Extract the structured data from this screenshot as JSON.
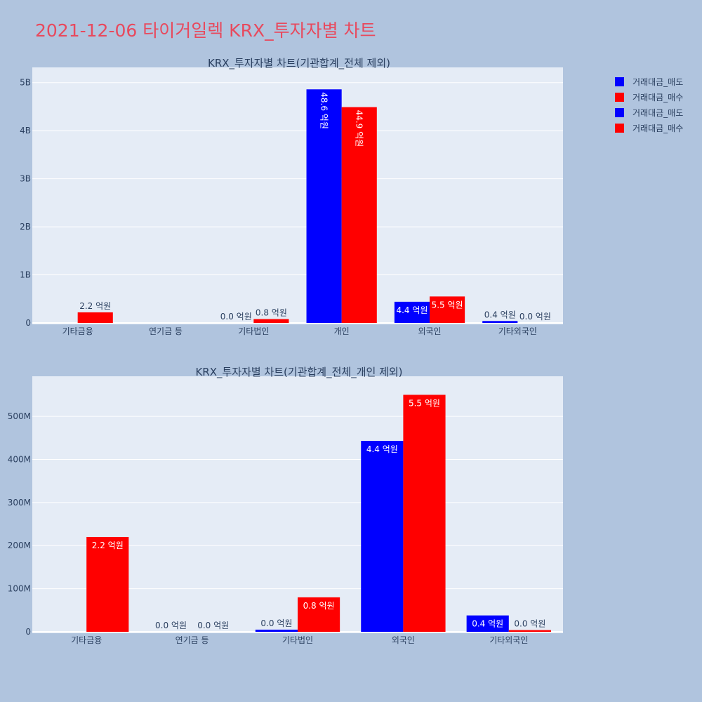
{
  "page": {
    "title": "2021-12-06 타이거일렉 KRX_투자자별 차트"
  },
  "legend": {
    "items": [
      {
        "label": "거래대금_매도",
        "color": "#0000ff"
      },
      {
        "label": "거래대금_매수",
        "color": "#ff0000"
      },
      {
        "label": "거래대금_매도",
        "color": "#0000ff"
      },
      {
        "label": "거래대금_매수",
        "color": "#ff0000"
      }
    ]
  },
  "chart_data": [
    {
      "type": "bar",
      "title": "KRX_투자자별 차트(기관합계_전체 제외)",
      "categories": [
        "기타금융",
        "연기금 등",
        "기타법인",
        "개인",
        "외국인",
        "기타외국인"
      ],
      "series": [
        {
          "name": "거래대금_매도",
          "color": "#0000ff",
          "values": [
            0,
            0,
            0,
            4860000000,
            440000000,
            40000000
          ],
          "labels": [
            "",
            "",
            "0.0 억원",
            "48.6 억원",
            "4.4 억원",
            "0.4 억원"
          ]
        },
        {
          "name": "거래대금_매수",
          "color": "#ff0000",
          "values": [
            220000000,
            0,
            80000000,
            4490000000,
            550000000,
            0
          ],
          "labels": [
            "2.2 억원",
            "",
            "0.8 억원",
            "44.9 억원",
            "5.5 억원",
            "0.0 억원"
          ]
        }
      ],
      "yticks": [
        0,
        1000000000,
        2000000000,
        3000000000,
        4000000000,
        5000000000
      ],
      "ytick_labels": [
        "0",
        "1B",
        "2B",
        "3B",
        "4B",
        "5B"
      ],
      "ylim": [
        0,
        5200000000
      ]
    },
    {
      "type": "bar",
      "title": "KRX_투자자별 차트(기관합계_전체_개인 제외)",
      "categories": [
        "기타금융",
        "연기금 등",
        "기타법인",
        "외국인",
        "기타외국인"
      ],
      "series": [
        {
          "name": "거래대금_매도",
          "color": "#0000ff",
          "values": [
            0,
            0,
            5000000,
            443000000,
            38000000
          ],
          "labels": [
            "",
            "0.0 억원",
            "0.0 억원",
            "4.4 억원",
            "0.4 억원"
          ]
        },
        {
          "name": "거래대금_매수",
          "color": "#ff0000",
          "values": [
            220000000,
            0,
            80000000,
            550000000,
            4000000
          ],
          "labels": [
            "2.2 억원",
            "0.0 억원",
            "0.8 억원",
            "5.5 억원",
            "0.0 억원"
          ]
        }
      ],
      "yticks": [
        0,
        100000000,
        200000000,
        300000000,
        400000000,
        500000000
      ],
      "ytick_labels": [
        "0",
        "100M",
        "200M",
        "300M",
        "400M",
        "500M"
      ],
      "ylim": [
        0,
        580000000
      ]
    }
  ]
}
